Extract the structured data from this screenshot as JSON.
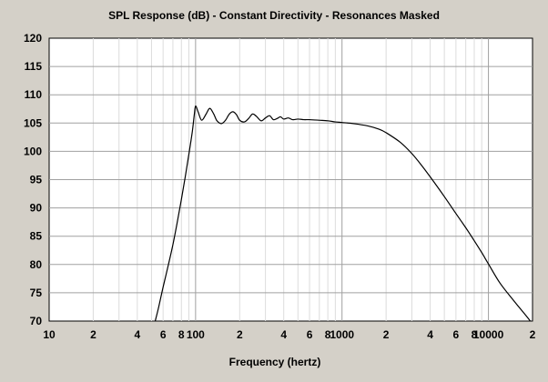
{
  "chart_data": {
    "type": "line",
    "title": "SPL Response (dB) - Constant Directivity - Resonances Masked",
    "xlabel": "Frequency (hertz)",
    "ylabel": "",
    "x_scale": "log",
    "xlim": [
      10,
      20000
    ],
    "ylim": [
      70,
      120
    ],
    "grid": true,
    "y_ticks": [
      70,
      75,
      80,
      85,
      90,
      95,
      100,
      105,
      110,
      115,
      120
    ],
    "x_ticks": [
      {
        "value": 10,
        "label": "10"
      },
      {
        "value": 20,
        "label": "2"
      },
      {
        "value": 40,
        "label": "4"
      },
      {
        "value": 60,
        "label": "6"
      },
      {
        "value": 80,
        "label": "8"
      },
      {
        "value": 100,
        "label": "100"
      },
      {
        "value": 200,
        "label": "2"
      },
      {
        "value": 400,
        "label": "4"
      },
      {
        "value": 600,
        "label": "6"
      },
      {
        "value": 800,
        "label": "8"
      },
      {
        "value": 1000,
        "label": "1000"
      },
      {
        "value": 2000,
        "label": "2"
      },
      {
        "value": 4000,
        "label": "4"
      },
      {
        "value": 6000,
        "label": "6"
      },
      {
        "value": 8000,
        "label": "8"
      },
      {
        "value": 10000,
        "label": "10000"
      },
      {
        "value": 20000,
        "label": "2"
      }
    ],
    "series": [
      {
        "color": "#000000",
        "x": [
          53,
          56,
          60,
          65,
          70,
          75,
          80,
          85,
          90,
          95,
          98,
          100,
          104,
          110,
          118,
          125,
          133,
          140,
          150,
          160,
          170,
          180,
          190,
          200,
          215,
          230,
          245,
          260,
          280,
          300,
          320,
          340,
          360,
          380,
          400,
          430,
          460,
          500,
          550,
          600,
          700,
          800,
          900,
          1000,
          1200,
          1500,
          1800,
          2000,
          2500,
          3000,
          3500,
          4000,
          5000,
          6000,
          7000,
          8000,
          9000,
          10000,
          12000,
          15000,
          18000,
          20000
        ],
        "y": [
          70,
          72.5,
          76,
          79.8,
          83.5,
          87.5,
          91.5,
          95.5,
          99.5,
          103.5,
          106.5,
          108,
          107,
          105.5,
          106.6,
          107.6,
          106.6,
          105.4,
          104.9,
          105.5,
          106.6,
          107,
          106.5,
          105.5,
          105.2,
          105.8,
          106.6,
          106.2,
          105.4,
          105.9,
          106.3,
          105.6,
          105.8,
          106.1,
          105.7,
          105.9,
          105.6,
          105.7,
          105.6,
          105.6,
          105.5,
          105.4,
          105.2,
          105.1,
          104.9,
          104.5,
          103.9,
          103.3,
          101.6,
          99.6,
          97.5,
          95.5,
          92,
          89,
          86.5,
          84.2,
          82.1,
          80.1,
          76.7,
          73.5,
          71,
          69.5
        ]
      }
    ]
  }
}
